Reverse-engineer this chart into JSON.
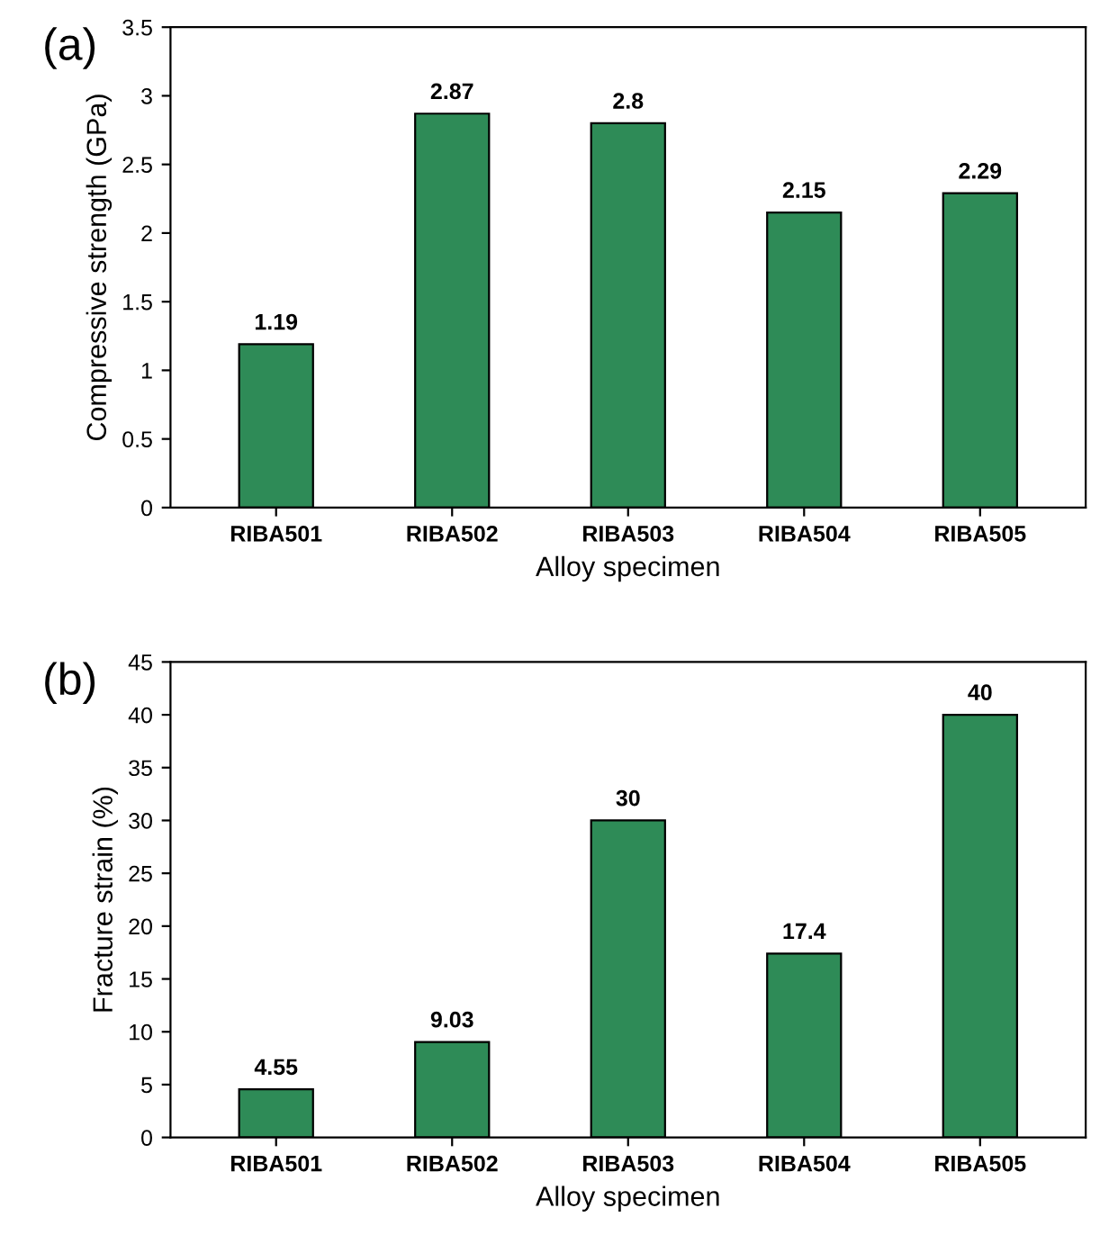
{
  "chart_data": [
    {
      "type": "bar",
      "title": "(a)",
      "xlabel": "Alloy specimen",
      "ylabel": "Compressive strength (GPa)",
      "categories": [
        "RIBA501",
        "RIBA502",
        "RIBA503",
        "RIBA504",
        "RIBA505"
      ],
      "values": [
        1.19,
        2.87,
        2.8,
        2.15,
        2.29
      ],
      "color": "#2e8b57",
      "ylim": [
        0,
        3.5
      ],
      "yticks": [
        0,
        0.5,
        1,
        1.5,
        2,
        2.5,
        3,
        3.5
      ],
      "data_labels": true,
      "grid": false,
      "legend": false
    },
    {
      "type": "bar",
      "title": "(b)",
      "xlabel": "Alloy specimen",
      "ylabel": "Fracture strain (%)",
      "categories": [
        "RIBA501",
        "RIBA502",
        "RIBA503",
        "RIBA504",
        "RIBA505"
      ],
      "values": [
        4.55,
        9.03,
        30,
        17.4,
        40
      ],
      "color": "#2e8b57",
      "ylim": [
        0,
        45
      ],
      "yticks": [
        0,
        5,
        10,
        15,
        20,
        25,
        30,
        35,
        40,
        45
      ],
      "data_labels": true,
      "grid": false,
      "legend": false
    }
  ]
}
